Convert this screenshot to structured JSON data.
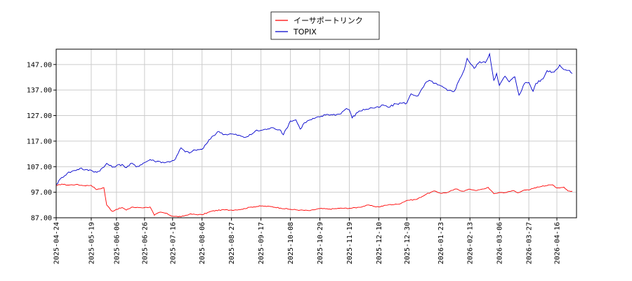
{
  "chart_data": {
    "type": "line",
    "title": "",
    "xlabel": "",
    "ylabel": "",
    "ylim": [
      87,
      153
    ],
    "yticks": [
      87,
      97,
      107,
      117,
      127,
      137,
      147
    ],
    "ytick_labels": [
      "87.00",
      "97.00",
      "107.00",
      "117.00",
      "127.00",
      "137.00",
      "147.00"
    ],
    "xlim": [
      "2025-04-24",
      "2026-04-30"
    ],
    "xticks": [
      "2025-04-24",
      "2025-05-19",
      "2025-06-06",
      "2025-06-26",
      "2025-07-16",
      "2025-08-06",
      "2025-08-27",
      "2025-09-17",
      "2025-10-08",
      "2025-10-29",
      "2025-11-19",
      "2025-12-10",
      "2025-12-30",
      "2026-01-23",
      "2026-02-13",
      "2026-03-06",
      "2026-03-27",
      "2026-04-16"
    ],
    "grid": true,
    "legend_position": "top-center",
    "series": [
      {
        "name": "イーサポートリンク",
        "color": "#ff0000",
        "points": [
          [
            "2025-04-24",
            99.5
          ],
          [
            "2025-04-28",
            100.2
          ],
          [
            "2025-05-02",
            99.8
          ],
          [
            "2025-05-08",
            100.0
          ],
          [
            "2025-05-14",
            99.6
          ],
          [
            "2025-05-19",
            99.7
          ],
          [
            "2025-05-23",
            98.0
          ],
          [
            "2025-05-28",
            98.8
          ],
          [
            "2025-05-30",
            92.0
          ],
          [
            "2025-06-03",
            89.5
          ],
          [
            "2025-06-06",
            90.3
          ],
          [
            "2025-06-10",
            91.0
          ],
          [
            "2025-06-13",
            90.0
          ],
          [
            "2025-06-17",
            91.2
          ],
          [
            "2025-06-20",
            91.0
          ],
          [
            "2025-06-26",
            91.0
          ],
          [
            "2025-06-30",
            91.2
          ],
          [
            "2025-07-03",
            88.0
          ],
          [
            "2025-07-07",
            89.2
          ],
          [
            "2025-07-11",
            88.8
          ],
          [
            "2025-07-16",
            87.6
          ],
          [
            "2025-07-22",
            87.4
          ],
          [
            "2025-07-28",
            88.4
          ],
          [
            "2025-08-06",
            88.2
          ],
          [
            "2025-08-13",
            89.6
          ],
          [
            "2025-08-20",
            90.1
          ],
          [
            "2025-08-27",
            90.0
          ],
          [
            "2025-09-03",
            90.3
          ],
          [
            "2025-09-10",
            91.2
          ],
          [
            "2025-09-17",
            91.6
          ],
          [
            "2025-09-24",
            91.4
          ],
          [
            "2025-10-01",
            90.8
          ],
          [
            "2025-10-08",
            90.3
          ],
          [
            "2025-10-15",
            90.0
          ],
          [
            "2025-10-22",
            89.8
          ],
          [
            "2025-10-29",
            90.6
          ],
          [
            "2025-11-05",
            90.4
          ],
          [
            "2025-11-12",
            90.7
          ],
          [
            "2025-11-19",
            90.7
          ],
          [
            "2025-11-26",
            91.1
          ],
          [
            "2025-12-03",
            92.0
          ],
          [
            "2025-12-06",
            91.5
          ],
          [
            "2025-12-10",
            91.3
          ],
          [
            "2025-12-17",
            92.1
          ],
          [
            "2025-12-24",
            92.3
          ],
          [
            "2025-12-30",
            93.8
          ],
          [
            "2026-01-06",
            94.2
          ],
          [
            "2026-01-13",
            96.3
          ],
          [
            "2026-01-19",
            97.5
          ],
          [
            "2026-01-23",
            96.6
          ],
          [
            "2026-01-28",
            96.9
          ],
          [
            "2026-02-03",
            98.3
          ],
          [
            "2026-02-08",
            97.4
          ],
          [
            "2026-02-13",
            98.2
          ],
          [
            "2026-02-18",
            97.7
          ],
          [
            "2026-02-23",
            98.3
          ],
          [
            "2026-02-26",
            98.9
          ],
          [
            "2026-03-02",
            96.4
          ],
          [
            "2026-03-06",
            96.9
          ],
          [
            "2026-03-11",
            96.9
          ],
          [
            "2026-03-16",
            97.7
          ],
          [
            "2026-03-19",
            96.8
          ],
          [
            "2026-03-23",
            97.7
          ],
          [
            "2026-03-27",
            97.9
          ],
          [
            "2026-03-31",
            98.7
          ],
          [
            "2026-04-06",
            99.5
          ],
          [
            "2026-04-13",
            99.9
          ],
          [
            "2026-04-16",
            98.7
          ],
          [
            "2026-04-21",
            99.0
          ],
          [
            "2026-04-24",
            97.5
          ],
          [
            "2026-04-27",
            97.4
          ]
        ]
      },
      {
        "name": "TOPIX",
        "color": "#0000cc",
        "points": [
          [
            "2025-04-24",
            100.0
          ],
          [
            "2025-04-28",
            102.8
          ],
          [
            "2025-05-02",
            104.5
          ],
          [
            "2025-05-07",
            105.5
          ],
          [
            "2025-05-12",
            106.5
          ],
          [
            "2025-05-14",
            105.7
          ],
          [
            "2025-05-19",
            105.6
          ],
          [
            "2025-05-23",
            104.8
          ],
          [
            "2025-05-28",
            106.8
          ],
          [
            "2025-05-30",
            108.3
          ],
          [
            "2025-06-03",
            106.8
          ],
          [
            "2025-06-06",
            107.4
          ],
          [
            "2025-06-10",
            107.9
          ],
          [
            "2025-06-13",
            106.6
          ],
          [
            "2025-06-17",
            108.4
          ],
          [
            "2025-06-20",
            106.9
          ],
          [
            "2025-06-26",
            108.6
          ],
          [
            "2025-06-30",
            109.8
          ],
          [
            "2025-07-03",
            109.2
          ],
          [
            "2025-07-07",
            109.0
          ],
          [
            "2025-07-11",
            108.6
          ],
          [
            "2025-07-16",
            109.4
          ],
          [
            "2025-07-18",
            110.0
          ],
          [
            "2025-07-22",
            114.4
          ],
          [
            "2025-07-25",
            112.8
          ],
          [
            "2025-07-29",
            112.6
          ],
          [
            "2025-08-01",
            113.5
          ],
          [
            "2025-08-06",
            113.8
          ],
          [
            "2025-08-10",
            116.5
          ],
          [
            "2025-08-13",
            118.7
          ],
          [
            "2025-08-18",
            120.8
          ],
          [
            "2025-08-22",
            119.6
          ],
          [
            "2025-08-27",
            119.8
          ],
          [
            "2025-09-01",
            119.3
          ],
          [
            "2025-09-05",
            118.4
          ],
          [
            "2025-09-10",
            119.5
          ],
          [
            "2025-09-13",
            121.0
          ],
          [
            "2025-09-17",
            121.2
          ],
          [
            "2025-09-22",
            121.8
          ],
          [
            "2025-09-26",
            122.2
          ],
          [
            "2025-10-01",
            121.3
          ],
          [
            "2025-10-03",
            119.5
          ],
          [
            "2025-10-08",
            124.9
          ],
          [
            "2025-10-12",
            125.3
          ],
          [
            "2025-10-15",
            121.7
          ],
          [
            "2025-10-18",
            124.2
          ],
          [
            "2025-10-22",
            125.3
          ],
          [
            "2025-10-29",
            126.5
          ],
          [
            "2025-11-03",
            127.5
          ],
          [
            "2025-11-07",
            127.3
          ],
          [
            "2025-11-12",
            127.6
          ],
          [
            "2025-11-17",
            129.8
          ],
          [
            "2025-11-19",
            129.3
          ],
          [
            "2025-11-21",
            126.1
          ],
          [
            "2025-11-26",
            128.8
          ],
          [
            "2025-12-01",
            129.5
          ],
          [
            "2025-12-05",
            130.0
          ],
          [
            "2025-12-10",
            130.2
          ],
          [
            "2025-12-13",
            131.2
          ],
          [
            "2025-12-17",
            130.2
          ],
          [
            "2025-12-22",
            131.6
          ],
          [
            "2025-12-27",
            131.9
          ],
          [
            "2025-12-30",
            131.9
          ],
          [
            "2026-01-02",
            135.5
          ],
          [
            "2026-01-07",
            134.7
          ],
          [
            "2026-01-13",
            140.2
          ],
          [
            "2026-01-16",
            140.6
          ],
          [
            "2026-01-21",
            139.0
          ],
          [
            "2026-01-23",
            138.7
          ],
          [
            "2026-01-28",
            136.8
          ],
          [
            "2026-02-02",
            136.6
          ],
          [
            "2026-02-05",
            140.5
          ],
          [
            "2026-02-09",
            145.0
          ],
          [
            "2026-02-11",
            149.4
          ],
          [
            "2026-02-13",
            147.6
          ],
          [
            "2026-02-16",
            145.5
          ],
          [
            "2026-02-20",
            148.1
          ],
          [
            "2026-02-24",
            147.7
          ],
          [
            "2026-02-27",
            151.2
          ],
          [
            "2026-03-02",
            140.8
          ],
          [
            "2026-03-04",
            143.5
          ],
          [
            "2026-03-06",
            138.8
          ],
          [
            "2026-03-10",
            142.4
          ],
          [
            "2026-03-13",
            140.2
          ],
          [
            "2026-03-17",
            142.2
          ],
          [
            "2026-03-20",
            135.0
          ],
          [
            "2026-03-24",
            139.7
          ],
          [
            "2026-03-27",
            140.0
          ],
          [
            "2026-03-30",
            136.5
          ],
          [
            "2026-04-01",
            139.6
          ],
          [
            "2026-04-06",
            141.3
          ],
          [
            "2026-04-09",
            144.6
          ],
          [
            "2026-04-14",
            144.0
          ],
          [
            "2026-04-18",
            146.8
          ],
          [
            "2026-04-21",
            145.0
          ],
          [
            "2026-04-24",
            144.7
          ],
          [
            "2026-04-27",
            143.5
          ]
        ]
      }
    ]
  }
}
